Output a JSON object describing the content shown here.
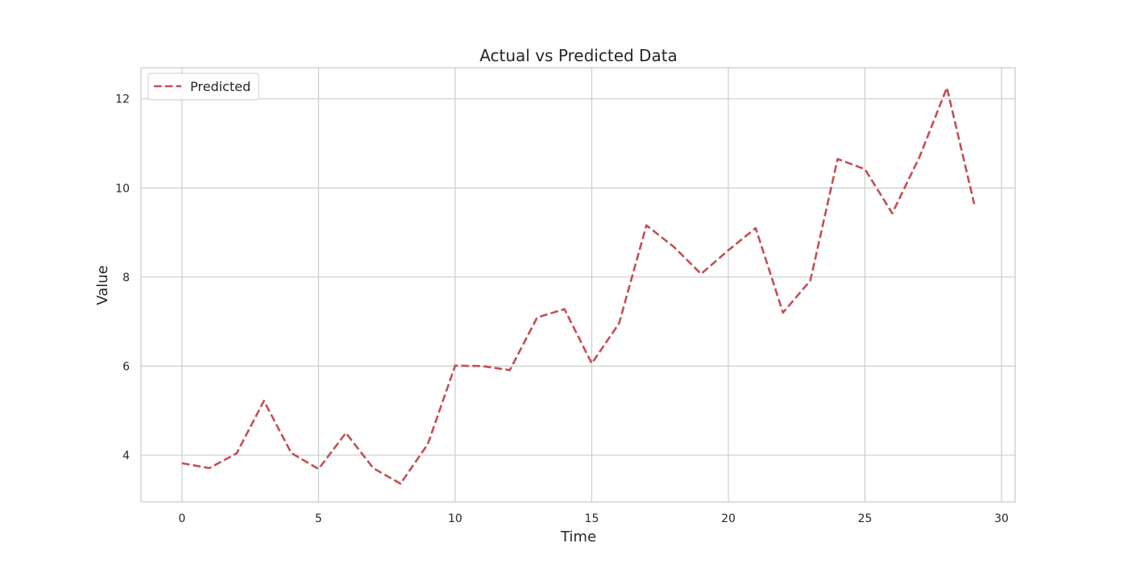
{
  "chart_data": {
    "type": "line",
    "title": "Actual vs Predicted Data",
    "xlabel": "Time",
    "ylabel": "Value",
    "xlim": [
      -1.5,
      30.5
    ],
    "ylim": [
      2.95,
      12.7
    ],
    "xticks": [
      0,
      5,
      10,
      15,
      20,
      25,
      30
    ],
    "yticks": [
      4,
      6,
      8,
      10,
      12
    ],
    "grid": true,
    "legend_position": "top-left",
    "series": [
      {
        "name": "Predicted",
        "color": "#c44e52",
        "line_style": "dashed",
        "x": [
          0,
          1,
          2,
          3,
          4,
          5,
          6,
          7,
          8,
          9,
          10,
          11,
          12,
          13,
          14,
          15,
          16,
          17,
          18,
          19,
          20,
          21,
          22,
          23,
          24,
          25,
          26,
          27,
          28,
          29
        ],
        "y": [
          3.82,
          3.71,
          4.04,
          5.22,
          4.05,
          3.69,
          4.5,
          3.71,
          3.36,
          4.25,
          6.01,
          6.0,
          5.91,
          7.09,
          7.28,
          6.06,
          6.96,
          9.16,
          8.68,
          8.07,
          8.6,
          9.1,
          7.2,
          7.92,
          10.65,
          10.42,
          9.43,
          10.7,
          12.25,
          9.64
        ]
      }
    ]
  }
}
